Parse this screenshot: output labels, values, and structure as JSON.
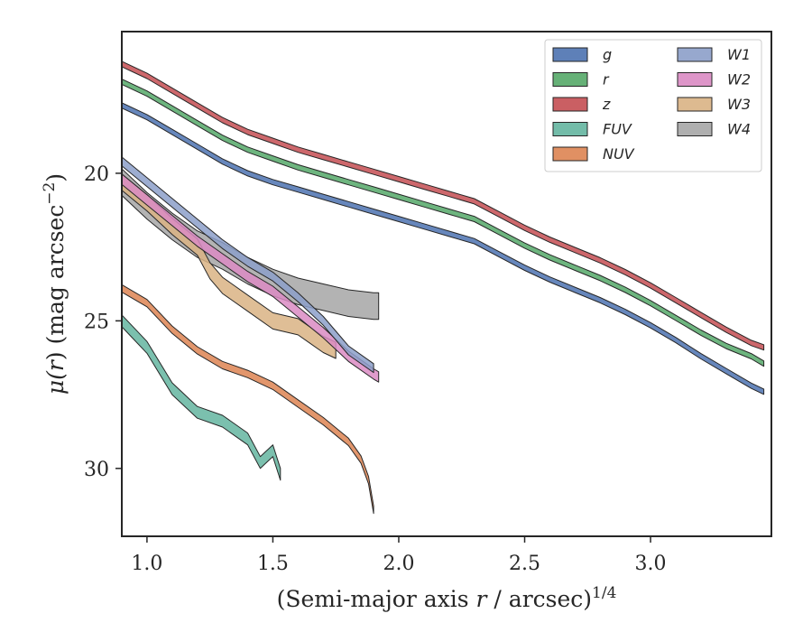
{
  "chart_data": {
    "type": "area",
    "xlabel": "(Semi-major axis r / arcsec)",
    "xlabel_parts": {
      "prefix": "(Semi-major axis ",
      "var": "r",
      "suffix": " / arcsec)",
      "sup": "1/4"
    },
    "ylabel": "μ(r) (mag arcsec⁻²)",
    "ylabel_parts": {
      "mu": "μ(",
      "var": "r",
      "mid": ") (mag arcsec",
      "sup": "−2",
      "end": ")"
    },
    "xlim": [
      0.9,
      3.48
    ],
    "ylim": [
      32.3,
      15.2
    ],
    "y_inverted": true,
    "xticks": [
      1.0,
      1.5,
      2.0,
      2.5,
      3.0
    ],
    "xtick_labels": [
      "1.0",
      "1.5",
      "2.0",
      "2.5",
      "3.0"
    ],
    "yticks": [
      20,
      25,
      30
    ],
    "ytick_labels": [
      "20",
      "25",
      "30"
    ],
    "grid": false,
    "legend_placement": "top-right",
    "legend_columns": 2,
    "series": [
      {
        "name": "g",
        "color": "#4c72b0",
        "width": 0.18,
        "x": [
          0.9,
          1.0,
          1.1,
          1.2,
          1.3,
          1.4,
          1.5,
          1.6,
          1.7,
          1.8,
          1.9,
          2.0,
          2.1,
          2.2,
          2.3,
          2.4,
          2.5,
          2.6,
          2.7,
          2.8,
          2.9,
          3.0,
          3.1,
          3.2,
          3.3,
          3.4,
          3.45
        ],
        "y": [
          17.7,
          18.1,
          18.6,
          19.1,
          19.6,
          20.0,
          20.3,
          20.55,
          20.8,
          21.05,
          21.3,
          21.55,
          21.8,
          22.05,
          22.3,
          22.75,
          23.2,
          23.6,
          23.95,
          24.3,
          24.7,
          25.15,
          25.65,
          26.2,
          26.7,
          27.2,
          27.4
        ]
      },
      {
        "name": "r",
        "color": "#55a868",
        "width": 0.18,
        "x": [
          0.9,
          1.0,
          1.1,
          1.2,
          1.3,
          1.4,
          1.5,
          1.6,
          1.7,
          1.8,
          1.9,
          2.0,
          2.1,
          2.2,
          2.3,
          2.4,
          2.5,
          2.6,
          2.7,
          2.8,
          2.9,
          3.0,
          3.1,
          3.2,
          3.3,
          3.4,
          3.45
        ],
        "y": [
          16.9,
          17.3,
          17.8,
          18.3,
          18.8,
          19.2,
          19.5,
          19.8,
          20.05,
          20.3,
          20.55,
          20.8,
          21.05,
          21.3,
          21.55,
          22.0,
          22.45,
          22.85,
          23.2,
          23.55,
          23.95,
          24.4,
          24.9,
          25.4,
          25.85,
          26.2,
          26.45
        ]
      },
      {
        "name": "z",
        "color": "#c44e52",
        "width": 0.18,
        "x": [
          0.9,
          1.0,
          1.1,
          1.2,
          1.3,
          1.4,
          1.5,
          1.6,
          1.7,
          1.8,
          1.9,
          2.0,
          2.1,
          2.2,
          2.3,
          2.4,
          2.5,
          2.6,
          2.7,
          2.8,
          2.9,
          3.0,
          3.1,
          3.2,
          3.3,
          3.4,
          3.45
        ],
        "y": [
          16.3,
          16.7,
          17.2,
          17.7,
          18.2,
          18.6,
          18.9,
          19.2,
          19.45,
          19.7,
          19.95,
          20.2,
          20.45,
          20.7,
          20.95,
          21.4,
          21.85,
          22.25,
          22.6,
          22.95,
          23.35,
          23.8,
          24.3,
          24.8,
          25.3,
          25.75,
          25.9
        ]
      },
      {
        "name": "FUV",
        "color": "#64b5a0",
        "width": 0.4,
        "x": [
          0.9,
          1.0,
          1.1,
          1.2,
          1.3,
          1.4,
          1.45,
          1.5,
          1.53
        ],
        "y": [
          25.0,
          25.9,
          27.3,
          28.1,
          28.4,
          29.0,
          29.8,
          29.4,
          30.2
        ]
      },
      {
        "name": "NUV",
        "color": "#dd8452",
        "width": 0.25,
        "x": [
          0.9,
          1.0,
          1.1,
          1.2,
          1.3,
          1.4,
          1.5,
          1.6,
          1.7,
          1.8,
          1.85,
          1.88,
          1.9
        ],
        "y": [
          23.9,
          24.4,
          25.3,
          26.0,
          26.5,
          26.8,
          27.2,
          27.8,
          28.4,
          29.1,
          29.7,
          30.4,
          31.4
        ]
      },
      {
        "name": "W1",
        "color": "#8c9fc9",
        "width": 0.3,
        "x": [
          0.9,
          1.0,
          1.1,
          1.2,
          1.3,
          1.4,
          1.5,
          1.6,
          1.7,
          1.8,
          1.9
        ],
        "y": [
          19.6,
          20.3,
          21.0,
          21.7,
          22.4,
          23.0,
          23.5,
          24.2,
          25.0,
          26.0,
          26.6
        ]
      },
      {
        "name": "W2",
        "color": "#da8bc3",
        "width": 0.35,
        "x": [
          0.9,
          1.0,
          1.1,
          1.2,
          1.3,
          1.4,
          1.5,
          1.6,
          1.7,
          1.8,
          1.9,
          1.92
        ],
        "y": [
          20.2,
          20.9,
          21.6,
          22.3,
          22.9,
          23.5,
          24.0,
          24.7,
          25.4,
          26.2,
          26.8,
          26.9
        ]
      },
      {
        "name": "W3",
        "color": "#d9b384",
        "width": 0.55,
        "x": [
          0.9,
          1.0,
          1.1,
          1.2,
          1.25,
          1.3,
          1.4,
          1.5,
          1.6,
          1.65,
          1.7,
          1.75
        ],
        "y": [
          20.3,
          21.0,
          21.8,
          22.5,
          23.3,
          23.8,
          24.4,
          25.0,
          25.2,
          25.5,
          25.8,
          26.0
        ]
      },
      {
        "name": "W4",
        "color": "#a6a6a6",
        "width": 0.9,
        "x": [
          0.9,
          1.0,
          1.1,
          1.2,
          1.3,
          1.4,
          1.5,
          1.6,
          1.7,
          1.8,
          1.9,
          1.92
        ],
        "y": [
          20.3,
          21.1,
          21.8,
          22.4,
          22.8,
          23.3,
          23.7,
          24.0,
          24.2,
          24.4,
          24.5,
          24.5
        ]
      }
    ]
  }
}
